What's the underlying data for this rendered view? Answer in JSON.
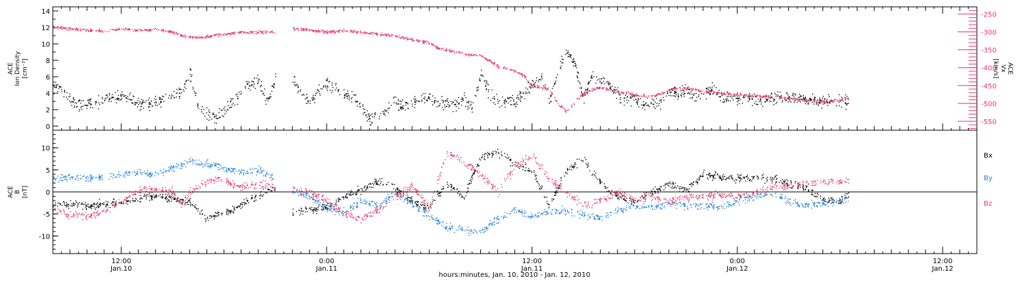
{
  "chart_data": [
    {
      "type": "scatter",
      "panel": "top",
      "ylabel_left": [
        "ACE",
        "Ion Density",
        "[cm⁻³]"
      ],
      "ylabel_right": "V_x [km/s]",
      "ylabel_right_parts": [
        "ACE",
        "Vx",
        "[km/s]"
      ],
      "ylim_left": [
        -0.5,
        14.5
      ],
      "ylim_right": [
        -575,
        -230
      ],
      "left_ticks": [
        0,
        2,
        4,
        6,
        8,
        10,
        12,
        14
      ],
      "right_ticks": [
        -250,
        -300,
        -350,
        -400,
        -450,
        -500,
        -550
      ],
      "series": [
        {
          "name": "Ion Density",
          "axis": "left",
          "color": "#000000",
          "x": [
            0.0,
            0.5,
            1.0,
            1.5,
            2.0,
            2.5,
            3.0,
            3.5,
            4.0,
            4.5,
            5.0,
            5.5,
            6.0,
            6.5,
            7.0,
            7.5,
            8.0,
            8.5,
            9.0,
            9.5,
            10.0,
            10.5,
            11.0,
            11.5,
            12.0,
            12.5,
            13.0,
            13.5,
            14.0,
            14.5,
            15.0,
            15.5,
            16.0,
            16.5,
            17.0,
            17.5,
            18.0,
            18.5,
            19.0,
            19.5,
            20.0,
            20.5,
            21.0,
            21.5,
            22.0,
            22.5,
            23.0,
            23.5,
            24.0,
            24.5,
            25.0,
            25.5,
            26.0,
            26.5,
            27.0,
            27.5,
            28.0,
            28.5,
            29.0,
            29.5,
            30.0,
            30.5,
            31.0,
            31.5,
            32.0,
            32.5,
            33.0,
            33.5,
            34.0,
            34.5,
            35.0,
            35.5,
            36.0,
            36.5,
            37.0,
            37.5,
            38.0,
            38.5,
            39.0,
            39.5,
            40.0,
            40.5,
            41.0,
            41.5,
            42.0,
            42.5,
            43.0,
            43.5,
            44.0,
            44.5,
            45.0,
            45.5,
            46.0,
            46.5
          ],
          "y": [
            5,
            4.5,
            3,
            2.5,
            2.8,
            3,
            3.2,
            3.5,
            3.6,
            3.3,
            2.8,
            2.6,
            3.0,
            3.3,
            3.6,
            4.0,
            6.5,
            2.5,
            1.5,
            1.0,
            2.0,
            3.0,
            4.0,
            5.2,
            5.5,
            3.0,
            6.0,
            7.5,
            5.5,
            4.0,
            3.0,
            4.5,
            5.0,
            4.8,
            4.0,
            3.5,
            2.5,
            1.0,
            1.5,
            2.0,
            3.0,
            2.5,
            3.0,
            3.2,
            3.5,
            3.0,
            2.8,
            2.6,
            3.5,
            2.0,
            6.5,
            4.0,
            3.0,
            3.2,
            3.0,
            4.0,
            5.0,
            6.0,
            3.2,
            7.0,
            9.0,
            7.5,
            3.5,
            6.0,
            5.5,
            5.0,
            4.0,
            3.0,
            3.5,
            2.5,
            3.0,
            2.8,
            4.5,
            3.8,
            4.5,
            3.5,
            4.2,
            4.5,
            3.8,
            3.5,
            3.5,
            3.4,
            3.3,
            3.2,
            3.4,
            3.5,
            3.6,
            3.5,
            3.3,
            3.2,
            3.0,
            3.0,
            3.0,
            3.0
          ],
          "gaps": [
            [
              13.0,
              14.0
            ]
          ]
        },
        {
          "name": "Vx",
          "axis": "right",
          "color": "#e8366a",
          "x": [
            0.0,
            1.0,
            2.0,
            3.0,
            4.0,
            5.0,
            6.0,
            7.0,
            7.5,
            8.0,
            9.0,
            10.0,
            11.0,
            12.0,
            12.9,
            13.6,
            14.0,
            15.0,
            16.0,
            17.0,
            18.0,
            19.0,
            20.0,
            21.0,
            22.0,
            22.5,
            23.0,
            24.0,
            25.0,
            26.0,
            26.5,
            27.0,
            27.5,
            28.0,
            29.0,
            29.5,
            30.0,
            31.0,
            31.5,
            32.0,
            32.5,
            33.0,
            34.0,
            35.0,
            36.0,
            37.0,
            38.0,
            39.0,
            40.0,
            41.0,
            42.0,
            43.0,
            44.0,
            45.0,
            46.0,
            46.5
          ],
          "y": [
            -285,
            -290,
            -295,
            -297,
            -290,
            -295,
            -292,
            -300,
            -310,
            -315,
            -312,
            -305,
            -300,
            -300,
            -300,
            -290,
            -290,
            -293,
            -300,
            -295,
            -300,
            -305,
            -310,
            -320,
            -330,
            -345,
            -350,
            -360,
            -365,
            -395,
            -400,
            -410,
            -420,
            -450,
            -460,
            -500,
            -520,
            -470,
            -460,
            -455,
            -460,
            -465,
            -475,
            -480,
            -460,
            -455,
            -465,
            -470,
            -475,
            -478,
            -480,
            -485,
            -490,
            -495,
            -490,
            -485
          ],
          "gaps": [
            [
              13.0,
              14.0
            ]
          ]
        }
      ],
      "grid": false
    },
    {
      "type": "scatter",
      "panel": "bottom",
      "ylabel_left": [
        "ACE",
        "B",
        "[nT]"
      ],
      "ylim": [
        -14,
        14
      ],
      "ticks": [
        10,
        5,
        0,
        -5,
        -10
      ],
      "zero_line": true,
      "legend": [
        "Bx",
        "By",
        "Bz"
      ],
      "legend_placement": "right",
      "series": [
        {
          "name": "Bx",
          "color": "#000000",
          "x": [
            0.0,
            1.0,
            2.0,
            3.0,
            4.0,
            5.0,
            6.0,
            7.0,
            7.5,
            8.0,
            9.0,
            10.0,
            11.0,
            12.0,
            12.9,
            13.6,
            14.0,
            15.0,
            16.0,
            17.0,
            18.0,
            19.0,
            20.0,
            21.0,
            22.0,
            23.0,
            24.0,
            25.0,
            26.0,
            27.0,
            28.0,
            29.0,
            30.0,
            31.0,
            32.0,
            33.0,
            34.0,
            35.0,
            36.0,
            37.0,
            38.0,
            39.0,
            40.0,
            41.0,
            42.0,
            43.0,
            44.0,
            45.0,
            46.0,
            46.5
          ],
          "y": [
            -3,
            -2.5,
            -3.2,
            -2.5,
            -2.2,
            -1.5,
            -1.0,
            -1.5,
            -2.0,
            -2.3,
            -6.0,
            -4.5,
            -3.0,
            -0.5,
            1.0,
            1.0,
            -4.5,
            -4.0,
            -3.5,
            -1.0,
            0.5,
            2.5,
            1.0,
            -2.0,
            -3.5,
            2.0,
            -1.0,
            8.0,
            9.0,
            6.5,
            5.0,
            -3.0,
            5.0,
            7.5,
            2.0,
            -1.0,
            -2.0,
            0.0,
            2.0,
            0.5,
            4.0,
            3.5,
            3.0,
            3.5,
            3.0,
            2.0,
            1.0,
            -1.5,
            -2.0,
            -0.5
          ],
          "gaps": [
            [
              13.0,
              14.0
            ]
          ]
        },
        {
          "name": "By",
          "color": "#1e7fd8",
          "x": [
            0.0,
            1.0,
            2.0,
            3.0,
            4.0,
            5.0,
            6.0,
            7.0,
            7.5,
            8.0,
            9.0,
            10.0,
            11.0,
            12.0,
            12.9,
            13.6,
            14.0,
            15.0,
            16.0,
            17.0,
            18.0,
            19.0,
            20.0,
            21.0,
            22.0,
            23.0,
            24.0,
            25.0,
            26.0,
            27.0,
            28.0,
            29.0,
            30.0,
            31.0,
            32.0,
            33.0,
            34.0,
            35.0,
            36.0,
            37.0,
            38.0,
            39.0,
            40.0,
            41.0,
            42.0,
            43.0,
            44.0,
            45.0,
            46.0,
            46.5
          ],
          "y": [
            3.0,
            3.5,
            3.0,
            3.5,
            4.0,
            4.5,
            4.0,
            5.5,
            6.0,
            7.0,
            6.5,
            5.5,
            4.5,
            5.0,
            3.0,
            0.5,
            0.5,
            -1.0,
            -3.5,
            -4.5,
            -2.0,
            -3.0,
            0.0,
            -2.5,
            -5.5,
            -8.0,
            -8.5,
            -9.0,
            -6.0,
            -4.0,
            -5.5,
            -4.5,
            -4.0,
            -5.0,
            -6.0,
            -4.0,
            -3.0,
            -3.5,
            -2.5,
            -3.0,
            -3.0,
            -3.5,
            -2.0,
            -1.0,
            0.0,
            -2.0,
            -3.0,
            -2.5,
            -2.0,
            -1.5
          ],
          "gaps": [
            [
              13.0,
              14.0
            ]
          ]
        },
        {
          "name": "Bz",
          "color": "#e8366a",
          "x": [
            0.0,
            1.0,
            2.0,
            3.0,
            4.0,
            5.0,
            6.0,
            7.0,
            7.5,
            8.0,
            9.0,
            10.0,
            11.0,
            12.0,
            12.9,
            13.6,
            14.0,
            15.0,
            16.0,
            17.0,
            18.0,
            19.0,
            20.0,
            21.0,
            22.0,
            23.0,
            24.0,
            25.0,
            26.0,
            27.0,
            28.0,
            29.0,
            30.0,
            31.0,
            32.0,
            33.0,
            34.0,
            35.0,
            36.0,
            37.0,
            38.0,
            39.0,
            40.0,
            41.0,
            42.0,
            43.0,
            44.0,
            45.0,
            46.0,
            46.5
          ],
          "y": [
            -4.0,
            -5.0,
            -5.5,
            -4.0,
            -2.0,
            0.5,
            0.5,
            0.0,
            -3.0,
            0.0,
            2.5,
            3.0,
            1.0,
            2.0,
            1.5,
            -1.0,
            0.5,
            0.0,
            -2.0,
            -5.0,
            -6.0,
            -4.0,
            -1.0,
            1.5,
            -3.5,
            9.0,
            7.0,
            4.0,
            0.0,
            6.0,
            8.5,
            3.0,
            0.0,
            -3.0,
            -2.0,
            0.0,
            -1.5,
            -1.0,
            -2.0,
            -1.0,
            -1.0,
            -0.5,
            -1.0,
            0.0,
            1.0,
            1.5,
            2.0,
            2.5,
            2.5,
            2.5
          ],
          "gaps": [
            [
              13.0,
              14.0
            ]
          ]
        }
      ],
      "grid": false
    }
  ],
  "x_axis": {
    "range_hours": [
      0,
      54
    ],
    "major_ticks": [
      {
        "hour": 4,
        "time": "12:00",
        "date": "Jan.10"
      },
      {
        "hour": 16,
        "time": "0:00",
        "date": "Jan.11"
      },
      {
        "hour": 28,
        "time": "12:00",
        "date": "Jan.11"
      },
      {
        "hour": 40,
        "time": "0:00",
        "date": "Jan.12"
      },
      {
        "hour": 52,
        "time": "12:00",
        "date": "Jan.12"
      }
    ],
    "minor_tick_step_hours": 0.5,
    "xlabel": "hours:minutes, Jan. 10, 2010 - Jan. 12, 2010"
  },
  "labels": {
    "top_left": [
      "ACE",
      "Ion Density",
      "[cm⁻³]"
    ],
    "top_right": [
      "ACE",
      "Vx",
      "[km/s]"
    ],
    "bottom_left": [
      "ACE",
      "B",
      "[nT]"
    ],
    "legend_bx": "Bx",
    "legend_by": "By",
    "legend_bz": "Bz",
    "x_title": "hours:minutes, Jan. 10, 2010 - Jan. 12, 2010"
  }
}
